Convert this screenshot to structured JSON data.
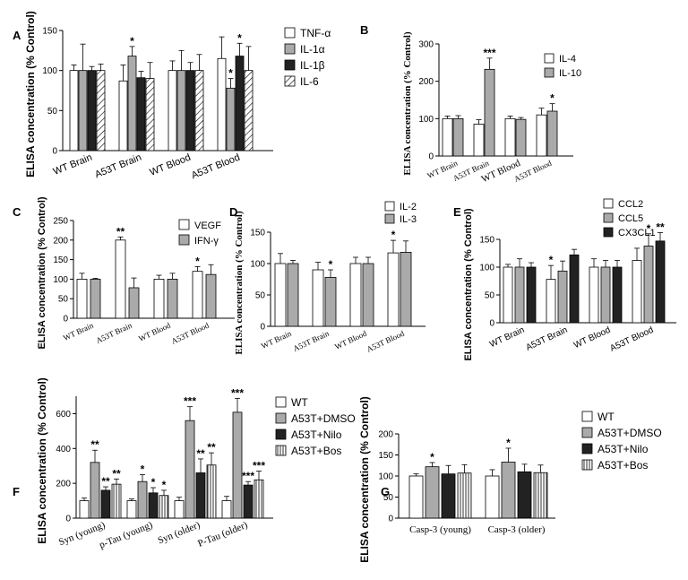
{
  "chart_data": [
    {
      "panel": "A",
      "type": "bar",
      "ylabel": "ELISA concentration (% Control)",
      "ylim": [
        0,
        150
      ],
      "yticks": [
        0,
        50,
        100,
        150
      ],
      "categories": [
        "WT Brain",
        "A53T Brain",
        "WT Blood",
        "A53T Blood"
      ],
      "series": [
        {
          "name": "TNF-α",
          "color": "#ffffff",
          "pattern": "none",
          "values": [
            100,
            87,
            100,
            115
          ],
          "errors": [
            7,
            20,
            12,
            27
          ]
        },
        {
          "name": "IL-1α",
          "color": "#aaaaaa",
          "pattern": "none",
          "values": [
            100,
            118,
            100,
            78
          ],
          "errors": [
            33,
            12,
            25,
            12
          ]
        },
        {
          "name": "IL-1β",
          "color": "#222222",
          "pattern": "none",
          "values": [
            100,
            91,
            100,
            118
          ],
          "errors": [
            5,
            8,
            10,
            16
          ]
        },
        {
          "name": "IL-6",
          "color": "#ffffff",
          "pattern": "hatch",
          "values": [
            100,
            90,
            100,
            100
          ],
          "errors": [
            8,
            20,
            20,
            30
          ]
        }
      ],
      "significance": [
        {
          "category": "A53T Brain",
          "series": 1,
          "label": "*"
        },
        {
          "category": "A53T Blood",
          "series": 1,
          "label": "*"
        },
        {
          "category": "A53T Blood",
          "series": 2,
          "label": "*"
        }
      ]
    },
    {
      "panel": "B",
      "type": "bar",
      "ylabel": "ELISA concentration (% Control)",
      "ylim": [
        0,
        300
      ],
      "yticks": [
        0,
        100,
        200,
        300
      ],
      "categories": [
        "WT Brain",
        "A53T Brain",
        "WT Blood",
        "A53T Blood"
      ],
      "series": [
        {
          "name": "IL-4",
          "color": "#ffffff",
          "pattern": "none",
          "values": [
            100,
            85,
            100,
            110
          ],
          "errors": [
            7,
            12,
            7,
            18
          ]
        },
        {
          "name": "IL-10",
          "color": "#aaaaaa",
          "pattern": "none",
          "values": [
            100,
            232,
            98,
            120
          ],
          "errors": [
            8,
            30,
            5,
            20
          ]
        }
      ],
      "significance": [
        {
          "category": "A53T Brain",
          "series": 1,
          "label": "***"
        },
        {
          "category": "A53T Blood",
          "series": 1,
          "label": "*"
        }
      ]
    },
    {
      "panel": "C",
      "type": "bar",
      "ylabel": "ELISA concentration (% Control)",
      "ylim": [
        0,
        250
      ],
      "yticks": [
        0,
        50,
        100,
        150,
        200,
        250
      ],
      "categories": [
        "WT Brain",
        "A53T Brain",
        "WT Blood",
        "A53T Blood"
      ],
      "series": [
        {
          "name": "VEGF",
          "color": "#ffffff",
          "pattern": "none",
          "values": [
            100,
            200,
            100,
            120
          ],
          "errors": [
            15,
            8,
            10,
            12
          ]
        },
        {
          "name": "IFN-γ",
          "color": "#aaaaaa",
          "pattern": "none",
          "values": [
            100,
            78,
            100,
            112
          ],
          "errors": [
            2,
            25,
            15,
            25
          ]
        }
      ],
      "significance": [
        {
          "category": "A53T Brain",
          "series": 0,
          "label": "**"
        },
        {
          "category": "A53T Blood",
          "series": 0,
          "label": "*"
        }
      ]
    },
    {
      "panel": "D",
      "type": "bar",
      "ylabel": "ELISA concentration (% Control)",
      "ylim": [
        0,
        150
      ],
      "yticks": [
        0,
        50,
        100,
        150
      ],
      "categories": [
        "WT Brain",
        "A53T Brain",
        "WT Blood",
        "A53T Blood"
      ],
      "series": [
        {
          "name": "IL-2",
          "color": "#ffffff",
          "pattern": "none",
          "values": [
            100,
            90,
            100,
            117
          ],
          "errors": [
            16,
            12,
            10,
            20
          ]
        },
        {
          "name": "IL-3",
          "color": "#aaaaaa",
          "pattern": "none",
          "values": [
            100,
            78,
            100,
            118
          ],
          "errors": [
            5,
            12,
            10,
            18
          ]
        }
      ],
      "significance": [
        {
          "category": "A53T Brain",
          "series": 1,
          "label": "*"
        },
        {
          "category": "A53T Blood",
          "series": 0,
          "label": "*"
        }
      ]
    },
    {
      "panel": "E",
      "type": "bar",
      "ylabel": "ELISA concentration (% Control)",
      "ylim": [
        0,
        150
      ],
      "yticks": [
        0,
        50,
        100,
        150
      ],
      "categories": [
        "WT Brain",
        "A53T Brain",
        "WT Blood",
        "A53T Blood"
      ],
      "series": [
        {
          "name": "CCL2",
          "color": "#ffffff",
          "pattern": "none",
          "values": [
            100,
            78,
            100,
            112
          ],
          "errors": [
            5,
            25,
            15,
            22
          ]
        },
        {
          "name": "CCL5",
          "color": "#aaaaaa",
          "pattern": "none",
          "values": [
            100,
            93,
            100,
            138
          ],
          "errors": [
            15,
            18,
            12,
            22
          ]
        },
        {
          "name": "CX3CL1",
          "color": "#222222",
          "pattern": "none",
          "values": [
            100,
            122,
            100,
            147
          ],
          "errors": [
            8,
            10,
            12,
            15
          ]
        }
      ],
      "significance": [
        {
          "category": "A53T Brain",
          "series": 0,
          "label": "*"
        },
        {
          "category": "A53T Blood",
          "series": 1,
          "label": "*"
        },
        {
          "category": "A53T Blood",
          "series": 2,
          "label": "**"
        }
      ]
    },
    {
      "panel": "F",
      "type": "bar",
      "ylabel": "ELISA concentration (% Control)",
      "ylim": [
        0,
        700
      ],
      "yticks": [
        0,
        200,
        400,
        600
      ],
      "categories": [
        "Syn (young)",
        "p-Tau (young)",
        "Syn (older)",
        "P-Tau (older)"
      ],
      "series": [
        {
          "name": "WT",
          "color": "#ffffff",
          "pattern": "none",
          "values": [
            100,
            100,
            100,
            100
          ],
          "errors": [
            15,
            10,
            20,
            25
          ]
        },
        {
          "name": "A53T+DMSO",
          "color": "#aaaaaa",
          "pattern": "none",
          "values": [
            320,
            210,
            560,
            608
          ],
          "errors": [
            70,
            40,
            80,
            80
          ]
        },
        {
          "name": "A53T+Nilo",
          "color": "#222222",
          "pattern": "none",
          "values": [
            160,
            145,
            260,
            190
          ],
          "errors": [
            20,
            30,
            80,
            20
          ]
        },
        {
          "name": "A53T+Bos",
          "color": "#ffffff",
          "pattern": "vlines",
          "values": [
            195,
            130,
            305,
            220
          ],
          "errors": [
            30,
            30,
            70,
            50
          ]
        }
      ],
      "significance": [
        {
          "category": "Syn (young)",
          "series": 1,
          "label": "**"
        },
        {
          "category": "Syn (young)",
          "series": 2,
          "label": "**"
        },
        {
          "category": "Syn (young)",
          "series": 3,
          "label": "**"
        },
        {
          "category": "p-Tau (young)",
          "series": 1,
          "label": "*"
        },
        {
          "category": "p-Tau (young)",
          "series": 2,
          "label": "*"
        },
        {
          "category": "p-Tau (young)",
          "series": 3,
          "label": "*"
        },
        {
          "category": "Syn (older)",
          "series": 1,
          "label": "***"
        },
        {
          "category": "Syn (older)",
          "series": 2,
          "label": "**"
        },
        {
          "category": "Syn (older)",
          "series": 3,
          "label": "**"
        },
        {
          "category": "P-Tau (older)",
          "series": 1,
          "label": "***"
        },
        {
          "category": "P-Tau (older)",
          "series": 2,
          "label": "***"
        },
        {
          "category": "P-Tau (older)",
          "series": 3,
          "label": "***"
        }
      ]
    },
    {
      "panel": "G",
      "type": "bar",
      "ylabel": "ELISA concentration (% Control)",
      "ylim": [
        0,
        200
      ],
      "yticks": [
        0,
        50,
        100,
        150,
        200
      ],
      "categories": [
        "Casp-3 (young)",
        "Casp-3 (older)"
      ],
      "series": [
        {
          "name": "WT",
          "color": "#ffffff",
          "pattern": "none",
          "values": [
            100,
            100
          ],
          "errors": [
            5,
            15
          ]
        },
        {
          "name": "A53T+DMSO",
          "color": "#aaaaaa",
          "pattern": "none",
          "values": [
            122,
            133
          ],
          "errors": [
            10,
            33
          ]
        },
        {
          "name": "A53T+Nilo",
          "color": "#222222",
          "pattern": "none",
          "values": [
            105,
            110
          ],
          "errors": [
            20,
            18
          ]
        },
        {
          "name": "A53T+Bos",
          "color": "#ffffff",
          "pattern": "vlines",
          "values": [
            107,
            108
          ],
          "errors": [
            20,
            18
          ]
        }
      ],
      "significance": [
        {
          "category": "Casp-3 (young)",
          "series": 1,
          "label": "*"
        },
        {
          "category": "Casp-3 (older)",
          "series": 1,
          "label": "*"
        }
      ]
    }
  ]
}
